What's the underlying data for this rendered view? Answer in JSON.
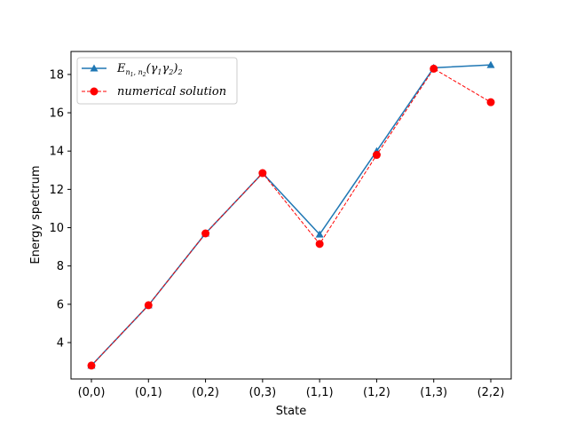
{
  "chart_data": {
    "type": "line",
    "xlabel": "State",
    "ylabel": "Energy spectrum",
    "categories": [
      "(0,0)",
      "(0,1)",
      "(0,2)",
      "(0,3)",
      "(1,1)",
      "(1,2)",
      "(1,3)",
      "(2,2)"
    ],
    "ylim": [
      2.1,
      19.2
    ],
    "yticks": [
      4,
      6,
      8,
      10,
      12,
      14,
      16,
      18
    ],
    "grid": false,
    "legend_position": "top-left",
    "series": [
      {
        "name": "E_{n1,n2}(γ1γ2)2",
        "style": "solid line, triangle markers",
        "color": "#1f77b4",
        "values": [
          2.8,
          5.95,
          9.7,
          12.85,
          9.65,
          14.0,
          18.35,
          18.5
        ]
      },
      {
        "name": "numerical solution",
        "style": "dashed line, circle markers",
        "color": "#ff0000",
        "values": [
          2.8,
          5.95,
          9.7,
          12.85,
          9.15,
          13.8,
          18.3,
          16.55
        ]
      }
    ]
  }
}
